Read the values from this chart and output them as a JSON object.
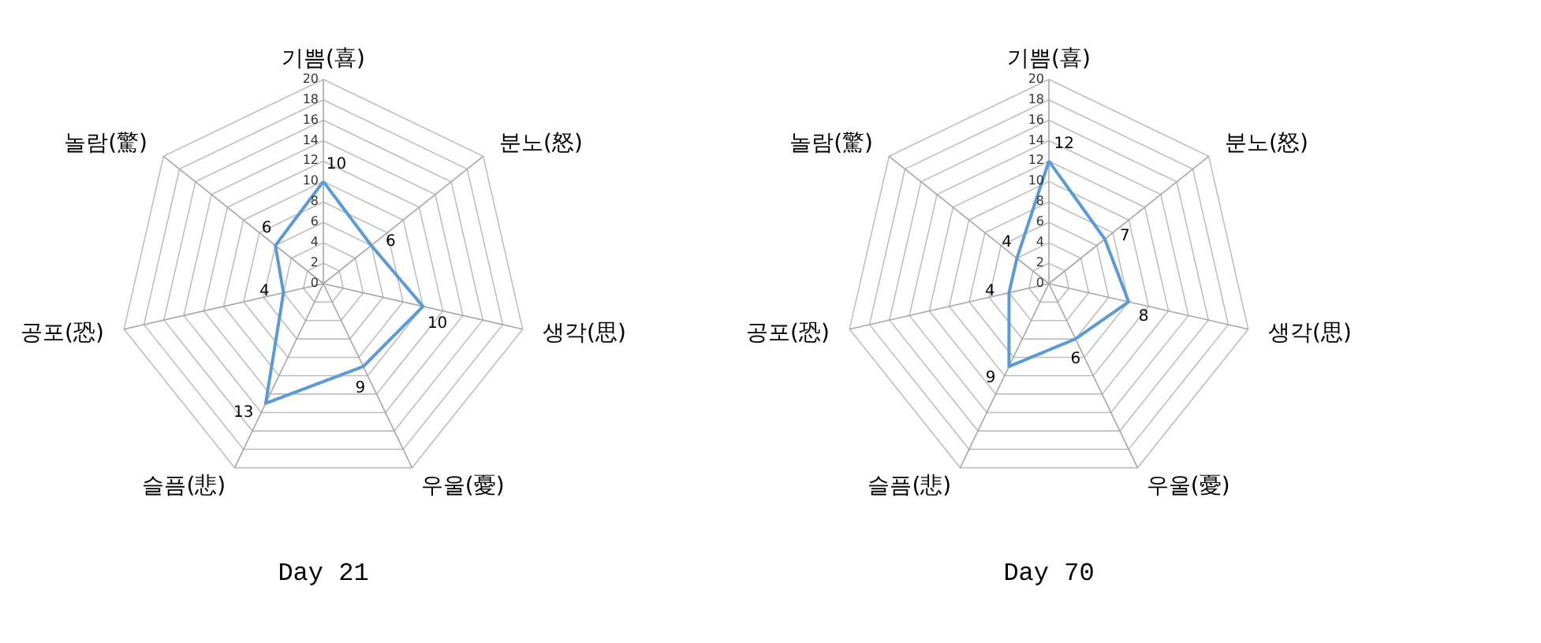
{
  "chart_data": [
    {
      "type": "radar",
      "title": "Day 21",
      "categories": [
        "기쁨(喜)",
        "분노(怒)",
        "생각(思)",
        "우울(憂)",
        "슬픔(悲)",
        "공포(恐)",
        "놀람(驚)"
      ],
      "series": [
        {
          "color": "#5b9bd5",
          "values": [
            10,
            6,
            10,
            9,
            13,
            4,
            6
          ]
        }
      ],
      "ylim": [
        0,
        20
      ],
      "yticks": [
        0,
        2,
        4,
        6,
        8,
        10,
        12,
        14,
        16,
        18,
        20
      ],
      "grid": true,
      "data_labels": true,
      "marker": "none",
      "line_style": "solid"
    },
    {
      "type": "radar",
      "title": "Day 70",
      "categories": [
        "기쁨(喜)",
        "분노(怒)",
        "생각(思)",
        "우울(憂)",
        "슬픔(悲)",
        "공포(恐)",
        "놀람(驚)"
      ],
      "series": [
        {
          "color": "#5b9bd5",
          "values": [
            12,
            7,
            8,
            6,
            9,
            4,
            4
          ]
        }
      ],
      "ylim": [
        0,
        20
      ],
      "yticks": [
        0,
        2,
        4,
        6,
        8,
        10,
        12,
        14,
        16,
        18,
        20
      ],
      "grid": true,
      "data_labels": true,
      "marker": "none",
      "line_style": "solid"
    }
  ]
}
